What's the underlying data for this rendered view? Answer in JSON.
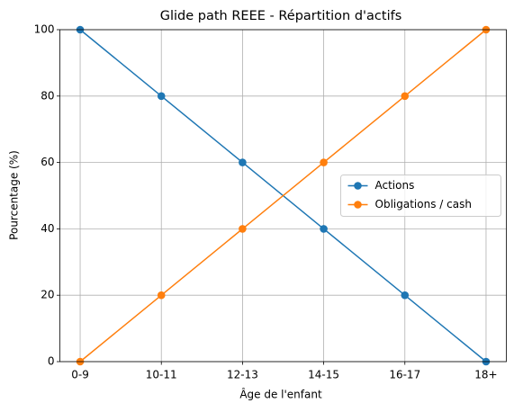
{
  "chart_data": {
    "type": "line",
    "title": "Glide path REEE - Répartition d'actifs",
    "x_label": "Âge de l'enfant",
    "y_label": "Pourcentage (%)",
    "categories": [
      "0-9",
      "10-11",
      "12-13",
      "14-15",
      "16-17",
      "18+"
    ],
    "series": [
      {
        "name": "Actions",
        "color": "#1f77b4",
        "values": [
          100,
          80,
          60,
          40,
          20,
          0
        ]
      },
      {
        "name": "Obligations / cash",
        "color": "#ff7f0e",
        "values": [
          0,
          20,
          40,
          60,
          80,
          100
        ]
      }
    ],
    "ylim": [
      0,
      100
    ],
    "yticks": [
      0,
      20,
      40,
      60,
      80,
      100
    ],
    "grid": true,
    "legend": "center right"
  }
}
